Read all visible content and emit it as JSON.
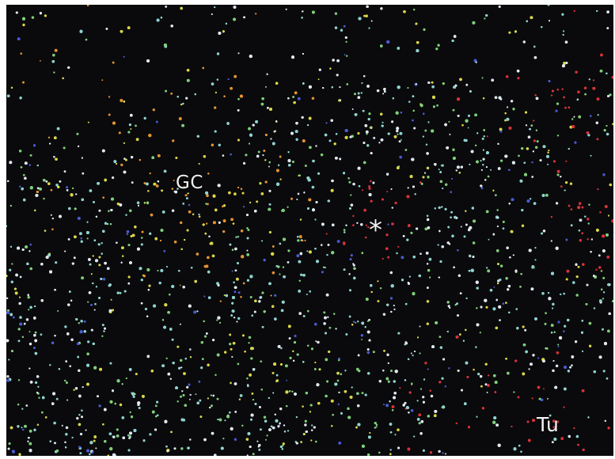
{
  "image": {
    "labels": {
      "germinal_center": "GC",
      "marker": "*",
      "tumor": "Tu"
    },
    "colors": {
      "background": "#0a0a0c",
      "cell_white": "#dfe8ee",
      "cell_cyan": "#8fd3cf",
      "cell_green": "#7fcf7a",
      "cell_yellow": "#d9d64a",
      "cell_orange": "#e39430",
      "cell_red": "#d8333a",
      "cell_blue": "#4a5bd1"
    }
  }
}
